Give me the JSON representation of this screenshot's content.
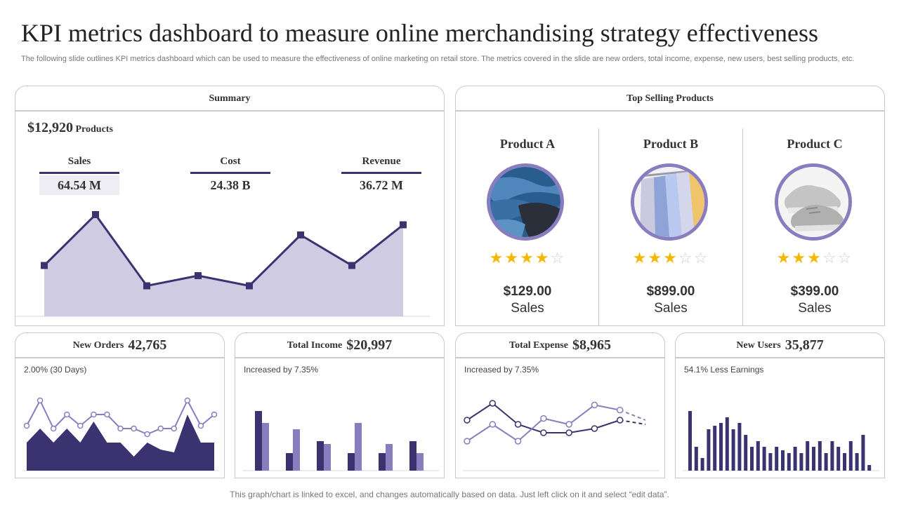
{
  "title": "KPI metrics dashboard to measure online merchandising strategy effectiveness",
  "subtitle": "The following slide outlines KPI metrics dashboard which can be used to measure the effectiveness of online marketing on retail store. The metrics covered in the slide are new orders, total income, expense, new users, best selling products, etc.",
  "summary": {
    "tab_label": "Summary",
    "products_value": "$12,920",
    "products_label": "Products",
    "metrics": [
      {
        "label": "Sales",
        "value": "64.54 M"
      },
      {
        "label": "Cost",
        "value": "24.38 B"
      },
      {
        "label": "Revenue",
        "value": "36.72 M"
      }
    ]
  },
  "top_selling": {
    "tab_label": "Top Selling Products",
    "products": [
      {
        "name": "Product A",
        "image": "denim-jeans-image",
        "rating": 4,
        "max_rating": 5,
        "price": "$129.00",
        "sales_label": "Sales"
      },
      {
        "name": "Product B",
        "image": "hanging-shirts-image",
        "rating": 3,
        "max_rating": 5,
        "price": "$899.00",
        "sales_label": "Sales"
      },
      {
        "name": "Product C",
        "image": "sneakers-image",
        "rating": 3,
        "max_rating": 5,
        "price": "$399.00",
        "sales_label": "Sales"
      }
    ]
  },
  "new_orders": {
    "label": "New Orders",
    "value": "42,765",
    "note": "2.00% (30 Days)"
  },
  "total_income": {
    "label": "Total Income",
    "value": "$20,997",
    "note": "Increased by 7.35%"
  },
  "total_expense": {
    "label": "Total Expense",
    "value": "$8,965",
    "note": "Increased by 7.35%"
  },
  "new_users": {
    "label": "New Users",
    "value": "35,877",
    "note": "54.1% Less Earnings"
  },
  "footer": "This graph/chart is linked to excel,  and changes automatically based on data. Just left click on it and select “edit data”.",
  "colors": {
    "dark": "#3b3270",
    "medium": "#8a7dbf",
    "light_fill": "#cfcbe3",
    "star": "#f5b800"
  },
  "chart_data": [
    {
      "id": "summary-area",
      "type": "area",
      "x": [
        1,
        2,
        3,
        4,
        5,
        6,
        7,
        8
      ],
      "values": [
        50,
        100,
        30,
        40,
        30,
        80,
        50,
        90
      ],
      "ylim": [
        0,
        100
      ]
    },
    {
      "id": "orders-mixed",
      "type": "area",
      "x": [
        1,
        2,
        3,
        4,
        5,
        6,
        7,
        8,
        9,
        10,
        11,
        12,
        13,
        14,
        15
      ],
      "series": [
        {
          "kind": "area",
          "values": [
            20,
            30,
            20,
            30,
            20,
            35,
            20,
            20,
            10,
            20,
            15,
            13,
            40,
            20,
            20
          ]
        },
        {
          "kind": "line",
          "values": [
            32,
            50,
            30,
            40,
            32,
            40,
            40,
            30,
            30,
            26,
            30,
            30,
            50,
            32,
            40
          ]
        }
      ],
      "ylim": [
        0,
        60
      ]
    },
    {
      "id": "income-bars",
      "type": "bar",
      "categories": [
        "1",
        "2",
        "3",
        "4",
        "5",
        "6"
      ],
      "series": [
        {
          "values": [
            85,
            25,
            42,
            25,
            25,
            42
          ]
        },
        {
          "values": [
            68,
            59,
            38,
            68,
            38,
            25
          ]
        }
      ],
      "ylim": [
        0,
        100
      ]
    },
    {
      "id": "expense-lines",
      "type": "line",
      "x": [
        1,
        2,
        3,
        4,
        5,
        6,
        7,
        8
      ],
      "series": [
        {
          "values": [
            60,
            80,
            55,
            45,
            45,
            50,
            60,
            55
          ],
          "projected_from": 6
        },
        {
          "values": [
            35,
            55,
            35,
            62,
            55,
            78,
            72,
            60
          ],
          "projected_from": 6
        }
      ],
      "ylim": [
        0,
        100
      ]
    },
    {
      "id": "users-bars",
      "type": "bar",
      "values": [
        85,
        34,
        18,
        59,
        64,
        68,
        76,
        59,
        68,
        51,
        34,
        42,
        34,
        25,
        34,
        29,
        25,
        34,
        25,
        42,
        34,
        42,
        25,
        42,
        34,
        25,
        42,
        25,
        51,
        8
      ],
      "ylim": [
        0,
        100
      ]
    }
  ]
}
